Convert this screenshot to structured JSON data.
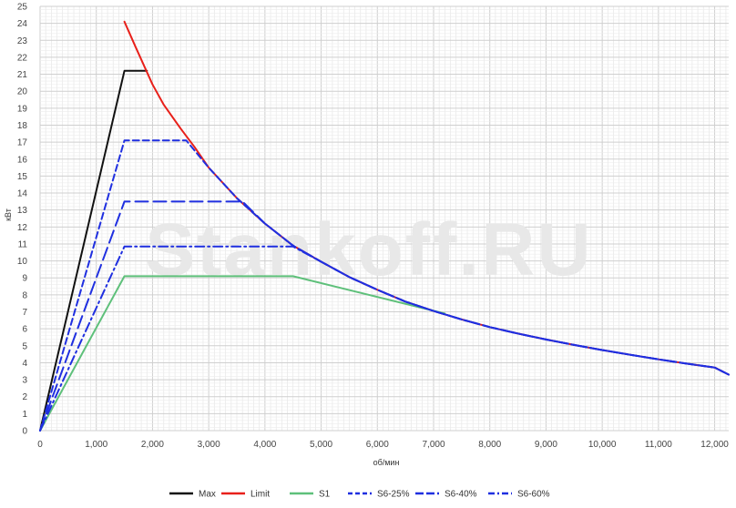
{
  "chart_data": {
    "type": "line",
    "title": "",
    "xlabel": "об/мин",
    "ylabel": "кВт",
    "xlim": [
      0,
      12250
    ],
    "ylim": [
      0,
      25
    ],
    "x_major_ticks": [
      0,
      1000,
      2000,
      3000,
      4000,
      5000,
      6000,
      7000,
      8000,
      9000,
      10000,
      11000,
      12000
    ],
    "x_tick_labels": [
      "0",
      "1,000",
      "2,000",
      "3,000",
      "4,000",
      "5,000",
      "6,000",
      "7,000",
      "8,000",
      "9,000",
      "10,000",
      "11,000",
      "12,000"
    ],
    "y_major_ticks": [
      0,
      1,
      2,
      3,
      4,
      5,
      6,
      7,
      8,
      9,
      10,
      11,
      12,
      13,
      14,
      15,
      16,
      17,
      18,
      19,
      20,
      21,
      22,
      23,
      24,
      25
    ],
    "y_tick_labels": [
      "0",
      "1",
      "2",
      "3",
      "4",
      "5",
      "6",
      "7",
      "8",
      "9",
      "10",
      "11",
      "12",
      "13",
      "14",
      "15",
      "16",
      "17",
      "18",
      "19",
      "20",
      "21",
      "22",
      "23",
      "24",
      "25"
    ],
    "grid": true,
    "legend_position": "bottom",
    "watermark": "Stankoff.RU",
    "series": [
      {
        "name": "Max",
        "color": "#111111",
        "dash": "solid",
        "points": [
          [
            0,
            0
          ],
          [
            1500,
            21.2
          ],
          [
            1900,
            21.2
          ]
        ]
      },
      {
        "name": "Limit",
        "color": "#e8201a",
        "dash": "solid",
        "points": [
          [
            1500,
            24.1
          ],
          [
            1700,
            22.6
          ],
          [
            2000,
            20.4
          ],
          [
            2200,
            19.2
          ],
          [
            2500,
            17.8
          ],
          [
            2750,
            16.7
          ],
          [
            3000,
            15.5
          ],
          [
            3500,
            13.7
          ],
          [
            4000,
            12.2
          ],
          [
            4500,
            10.9
          ],
          [
            5000,
            9.95
          ],
          [
            5500,
            9.05
          ],
          [
            6000,
            8.3
          ],
          [
            6500,
            7.6
          ],
          [
            7000,
            7.05
          ],
          [
            7500,
            6.55
          ],
          [
            8000,
            6.1
          ],
          [
            8500,
            5.72
          ],
          [
            9000,
            5.37
          ],
          [
            9500,
            5.05
          ],
          [
            10000,
            4.75
          ],
          [
            10500,
            4.47
          ],
          [
            11000,
            4.2
          ],
          [
            11500,
            3.95
          ],
          [
            12000,
            3.72
          ],
          [
            12250,
            3.3
          ]
        ]
      },
      {
        "name": "S1",
        "color": "#5ec07a",
        "dash": "solid",
        "points": [
          [
            0,
            0
          ],
          [
            1500,
            9.1
          ],
          [
            4500,
            9.1
          ],
          [
            7200,
            6.9
          ]
        ]
      },
      {
        "name": "S6-25%",
        "color": "#1f2fe0",
        "dash": "dash",
        "points": [
          [
            0,
            0
          ],
          [
            1500,
            17.1
          ],
          [
            2600,
            17.1
          ],
          [
            3000,
            15.5
          ],
          [
            3500,
            13.7
          ],
          [
            4000,
            12.2
          ],
          [
            4500,
            10.9
          ],
          [
            5000,
            9.95
          ],
          [
            5500,
            9.05
          ],
          [
            6000,
            8.3
          ],
          [
            6500,
            7.6
          ],
          [
            7000,
            7.05
          ],
          [
            7500,
            6.55
          ],
          [
            8000,
            6.1
          ],
          [
            8500,
            5.72
          ],
          [
            9000,
            5.37
          ],
          [
            9500,
            5.05
          ],
          [
            10000,
            4.75
          ],
          [
            10500,
            4.47
          ],
          [
            11000,
            4.2
          ],
          [
            11500,
            3.95
          ],
          [
            12000,
            3.72
          ],
          [
            12250,
            3.3
          ]
        ]
      },
      {
        "name": "S6-40%",
        "color": "#1f2fe0",
        "dash": "longdash",
        "points": [
          [
            0,
            0
          ],
          [
            1500,
            13.5
          ],
          [
            3600,
            13.5
          ],
          [
            4000,
            12.2
          ],
          [
            4500,
            10.9
          ],
          [
            5000,
            9.95
          ],
          [
            5500,
            9.05
          ],
          [
            6000,
            8.3
          ],
          [
            6500,
            7.6
          ],
          [
            7000,
            7.05
          ],
          [
            7500,
            6.55
          ],
          [
            8000,
            6.1
          ],
          [
            8500,
            5.72
          ],
          [
            9000,
            5.37
          ],
          [
            9500,
            5.05
          ],
          [
            10000,
            4.75
          ],
          [
            10500,
            4.47
          ],
          [
            11000,
            4.2
          ],
          [
            11500,
            3.95
          ],
          [
            12000,
            3.72
          ],
          [
            12250,
            3.3
          ]
        ]
      },
      {
        "name": "S6-60%",
        "color": "#1f2fe0",
        "dash": "dashdot",
        "points": [
          [
            0,
            0
          ],
          [
            1500,
            10.85
          ],
          [
            4500,
            10.85
          ],
          [
            5000,
            9.95
          ],
          [
            5500,
            9.05
          ],
          [
            6000,
            8.3
          ],
          [
            6500,
            7.6
          ],
          [
            7000,
            7.05
          ],
          [
            7500,
            6.55
          ],
          [
            8000,
            6.1
          ],
          [
            8500,
            5.72
          ],
          [
            9000,
            5.37
          ],
          [
            9500,
            5.05
          ],
          [
            10000,
            4.75
          ],
          [
            10500,
            4.47
          ],
          [
            11000,
            4.2
          ],
          [
            11500,
            3.95
          ],
          [
            12000,
            3.72
          ],
          [
            12250,
            3.3
          ]
        ]
      }
    ]
  }
}
